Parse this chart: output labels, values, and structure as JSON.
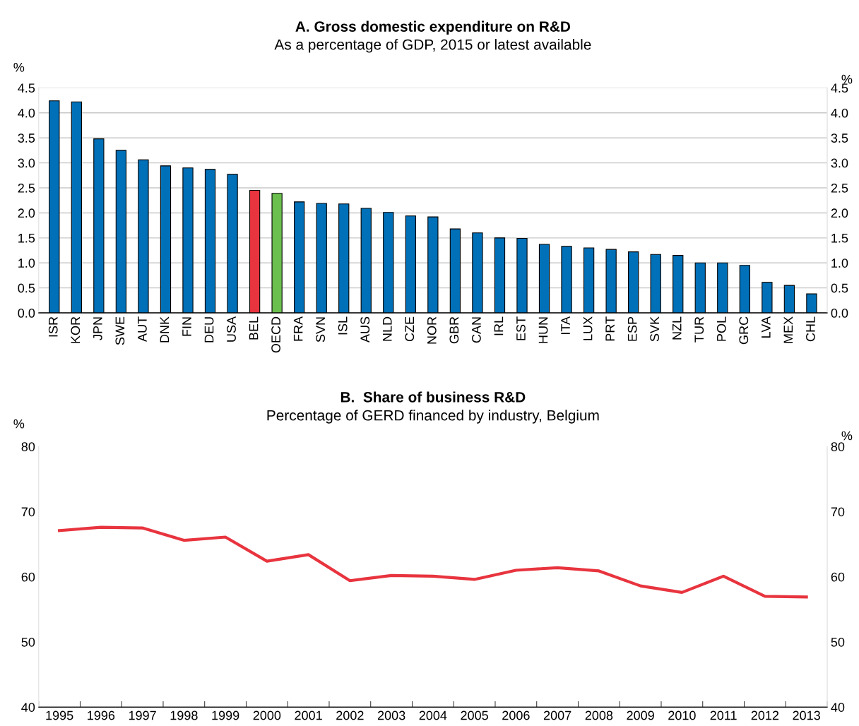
{
  "chart_data": [
    {
      "type": "bar",
      "title": "A. Gross domestic expenditure on R&D",
      "subtitle": "As a percentage of GDP, 2015 or latest available",
      "ylabel": "%",
      "y2label": "%",
      "categories": [
        "ISR",
        "KOR",
        "JPN",
        "SWE",
        "AUT",
        "DNK",
        "FIN",
        "DEU",
        "USA",
        "BEL",
        "OECD",
        "FRA",
        "SVN",
        "ISL",
        "AUS",
        "NLD",
        "CZE",
        "NOR",
        "GBR",
        "CAN",
        "IRL",
        "EST",
        "HUN",
        "ITA",
        "LUX",
        "PRT",
        "ESP",
        "SVK",
        "NZL",
        "TUR",
        "POL",
        "GRC",
        "LVA",
        "MEX",
        "CHL"
      ],
      "values": [
        4.24,
        4.22,
        3.48,
        3.25,
        3.06,
        2.94,
        2.9,
        2.87,
        2.77,
        2.45,
        2.39,
        2.22,
        2.19,
        2.18,
        2.09,
        2.01,
        1.94,
        1.92,
        1.68,
        1.6,
        1.5,
        1.49,
        1.37,
        1.33,
        1.3,
        1.27,
        1.22,
        1.17,
        1.15,
        1.0,
        1.0,
        0.95,
        0.61,
        0.55,
        0.38
      ],
      "colors": [
        "#0070b8",
        "#0070b8",
        "#0070b8",
        "#0070b8",
        "#0070b8",
        "#0070b8",
        "#0070b8",
        "#0070b8",
        "#0070b8",
        "#e8343e",
        "#6bbf4e",
        "#0070b8",
        "#0070b8",
        "#0070b8",
        "#0070b8",
        "#0070b8",
        "#0070b8",
        "#0070b8",
        "#0070b8",
        "#0070b8",
        "#0070b8",
        "#0070b8",
        "#0070b8",
        "#0070b8",
        "#0070b8",
        "#0070b8",
        "#0070b8",
        "#0070b8",
        "#0070b8",
        "#0070b8",
        "#0070b8",
        "#0070b8",
        "#0070b8",
        "#0070b8",
        "#0070b8"
      ],
      "ylim": [
        0,
        4.5
      ],
      "yticks": [
        {
          "value": 0,
          "label": "0.0"
        },
        {
          "value": 0.5,
          "label": "0.5"
        },
        {
          "value": 1,
          "label": "1.0"
        },
        {
          "value": 1.5,
          "label": "1.5"
        },
        {
          "value": 2,
          "label": "2.0"
        },
        {
          "value": 2.5,
          "label": "2.5"
        },
        {
          "value": 3,
          "label": "3.0"
        },
        {
          "value": 3.5,
          "label": "3.5"
        },
        {
          "value": 4,
          "label": "4.0"
        },
        {
          "value": 4.5,
          "label": "4.5"
        }
      ],
      "y2lim": [
        0,
        4.5
      ],
      "y2ticks": [
        {
          "value": 0,
          "label": "0.0"
        },
        {
          "value": 0.5,
          "label": "0.5"
        },
        {
          "value": 1,
          "label": "1.0"
        },
        {
          "value": 1.5,
          "label": "1.5"
        },
        {
          "value": 2,
          "label": "2.0"
        },
        {
          "value": 2.5,
          "label": "2.5"
        },
        {
          "value": 3,
          "label": "3.0"
        },
        {
          "value": 3.5,
          "label": "3.5"
        },
        {
          "value": 4,
          "label": "4.0"
        },
        {
          "value": 4.5,
          "label": "4.5"
        }
      ],
      "grid": "y",
      "legend": false
    },
    {
      "type": "line",
      "title": "B.  Share of business R&D",
      "subtitle": "Percentage of GERD financed by industry, Belgium",
      "ylabel": "%",
      "y2label": "%",
      "categories": [
        "1995",
        "1996",
        "1997",
        "1998",
        "1999",
        "2000",
        "2001",
        "2002",
        "2003",
        "2004",
        "2005",
        "2006",
        "2007",
        "2008",
        "2009",
        "2010",
        "2011",
        "2012",
        "2013"
      ],
      "series": [
        {
          "color": "#e8343e",
          "values": [
            67.1,
            67.6,
            67.5,
            65.6,
            66.1,
            62.4,
            63.4,
            59.4,
            60.2,
            60.1,
            59.6,
            61.0,
            61.4,
            60.9,
            58.6,
            57.6,
            60.1,
            57.0,
            56.9
          ]
        }
      ],
      "ylim": [
        40,
        80
      ],
      "yticks": [
        40,
        50,
        60,
        70,
        80
      ],
      "y2lim": [
        40,
        80
      ],
      "y2ticks": [
        40,
        50,
        60,
        70,
        80
      ],
      "grid": false,
      "legend": false,
      "marker": "none",
      "line_style": "solid"
    }
  ]
}
